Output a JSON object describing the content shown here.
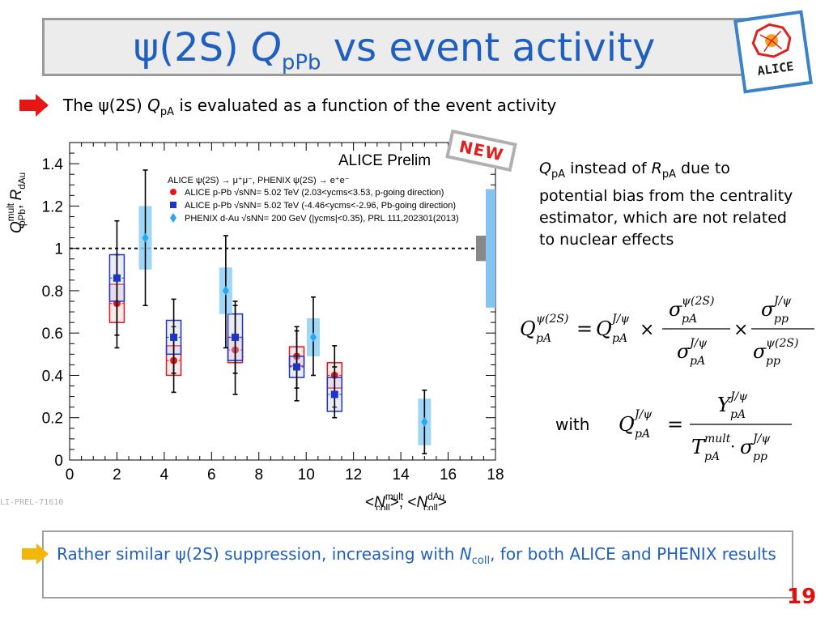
{
  "slide": {
    "title_prefix": "ψ(2S) ",
    "title_q": "Q",
    "title_sub": "pPb",
    "title_suffix": " vs event activity",
    "logo_text": "ALICE",
    "page_number": "19",
    "new_badge": "NEW",
    "prel_tag": "LI-PREL-71610"
  },
  "bullet1": {
    "pre": "The ψ(2S) ",
    "q": "Q",
    "sub": "pA",
    "post": " is evaluated as a function of the event activity"
  },
  "note": {
    "q": "Q",
    "q_sub": "pA",
    "mid": " instead of ",
    "r": "R",
    "r_sub": "pA",
    "rest": " due to potential bias from the centrality estimator, which are not related to nuclear effects"
  },
  "formula": {
    "with_label": "with"
  },
  "conclusion": {
    "pre": "Rather similar ψ(2S) suppression, increasing with ",
    "n": "N",
    "n_sub": "coll",
    "post": ", for both ALICE and PHENIX results"
  },
  "chart_data": {
    "type": "scatter",
    "title": "ALICE Prelim",
    "ylabel_main": "Q",
    "ylabel_sup": "mult",
    "ylabel_sub": "pPb",
    "ylabel_sep": ", ",
    "ylabel2_main": "R",
    "ylabel2_sub": "dAu",
    "xlabel_pre": "<",
    "xlabel_main": "N",
    "xlabel_sup": "mult",
    "xlabel_sub": "coll",
    "xlabel_mid": ">, <",
    "xlabel2_main": "N",
    "xlabel2_sup": "dAu",
    "xlabel2_sub": "coll",
    "xlabel_end": ">",
    "xlim": [
      0,
      18
    ],
    "ylim": [
      0,
      1.5
    ],
    "xticks": [
      "0",
      "2",
      "4",
      "6",
      "8",
      "10",
      "12",
      "14",
      "16",
      "18"
    ],
    "yticks": [
      "0",
      "0.2",
      "0.4",
      "0.6",
      "0.8",
      "1",
      "1.2",
      "1.4"
    ],
    "reference_line": 1,
    "legend_header": "ALICE ψ(2S) → μ⁺μ⁻, PHENIX  ψ(2S) → e⁺e⁻",
    "legend_labels": [
      "ALICE p-Pb √sNN= 5.02 TeV (2.03<ycms<3.53, p-going direction)",
      "ALICE p-Pb √sNN= 5.02 TeV (-4.46<ycms<-2.96, Pb-going direction)",
      "PHENIX d-Au √sNN= 200 GeV (|ycms|<0.35), PRL 111,202301(2013)"
    ],
    "series": [
      {
        "name": "ALICE p-Pb √sNN= 5.02 TeV (2.03<ycms<3.53, p-going direction)",
        "color": "#e3161b",
        "marker": "circle",
        "x": [
          2.0,
          4.4,
          7.0,
          9.6,
          11.2
        ],
        "y": [
          0.74,
          0.47,
          0.52,
          0.49,
          0.4
        ],
        "stat_lo": [
          0.53,
          0.32,
          0.31,
          0.34,
          0.25
        ],
        "stat_hi": [
          0.97,
          0.63,
          0.73,
          0.63,
          0.54
        ],
        "syst": [
          0.09,
          0.07,
          0.06,
          0.045,
          0.06
        ]
      },
      {
        "name": "ALICE p-Pb √sNN= 5.02 TeV (-4.46<ycms<-2.96, Pb-going direction)",
        "color": "#1c34c8",
        "marker": "square",
        "x": [
          2.0,
          4.4,
          7.0,
          9.6,
          11.2
        ],
        "y": [
          0.86,
          0.58,
          0.58,
          0.44,
          0.31
        ],
        "stat_lo": [
          0.59,
          0.41,
          0.41,
          0.28,
          0.2
        ],
        "stat_hi": [
          1.13,
          0.76,
          0.75,
          0.61,
          0.44
        ],
        "syst": [
          0.11,
          0.08,
          0.11,
          0.05,
          0.08
        ]
      },
      {
        "name": "PHENIX d-Au √sNN= 200 GeV (|ycms|<0.35), PRL 111,202301(2013)",
        "color": "#29a8f0",
        "marker": "diamond",
        "x": [
          3.2,
          6.6,
          10.3,
          15.0
        ],
        "y": [
          1.05,
          0.8,
          0.58,
          0.18
        ],
        "stat_lo": [
          0.73,
          0.53,
          0.4,
          0.03
        ],
        "stat_hi": [
          1.37,
          1.06,
          0.77,
          0.33
        ],
        "syst": [
          0.15,
          0.11,
          0.09,
          0.11
        ]
      }
    ],
    "global_uncertainties": [
      {
        "label": "ALICE global",
        "color": "#888888",
        "center": 1.0,
        "half_width": 0.06
      },
      {
        "label": "PHENIX global",
        "color": "#85c3f0",
        "center": 1.0,
        "half_width": 0.28
      }
    ]
  }
}
